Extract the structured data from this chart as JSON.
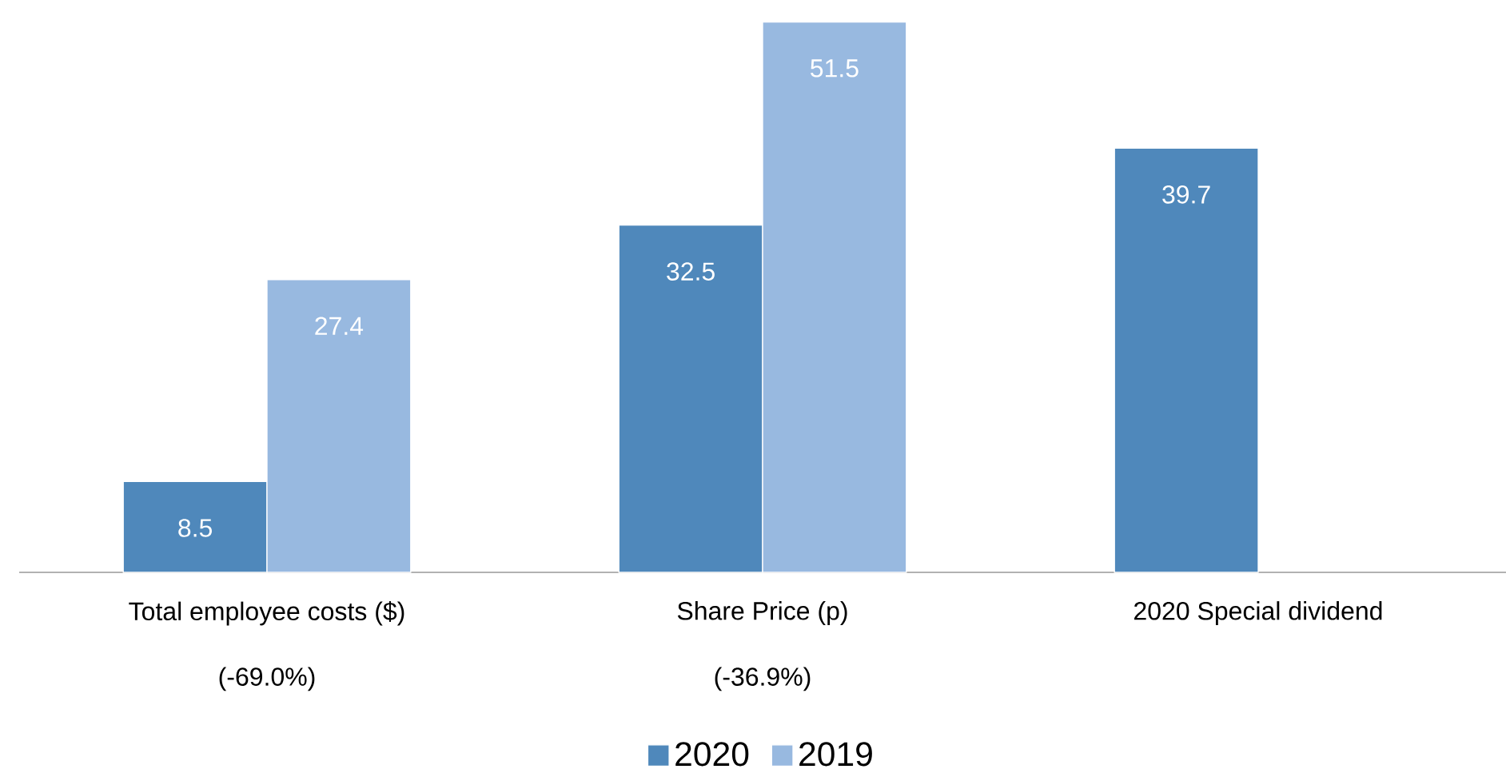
{
  "chart_data": {
    "type": "bar",
    "categories": [
      "Total employee costs ($)",
      "Share Price (p)",
      "2020 Special dividend"
    ],
    "series": [
      {
        "name": "2020",
        "color": "#4f88bb",
        "values": [
          8.5,
          32.5,
          39.7
        ]
      },
      {
        "name": "2019",
        "color": "#98b9e0",
        "values": [
          27.4,
          51.5,
          null
        ]
      }
    ],
    "annotations": [
      "(-69.0%)",
      "(-36.9%)"
    ],
    "data_labels": true,
    "legend": "bottom"
  }
}
